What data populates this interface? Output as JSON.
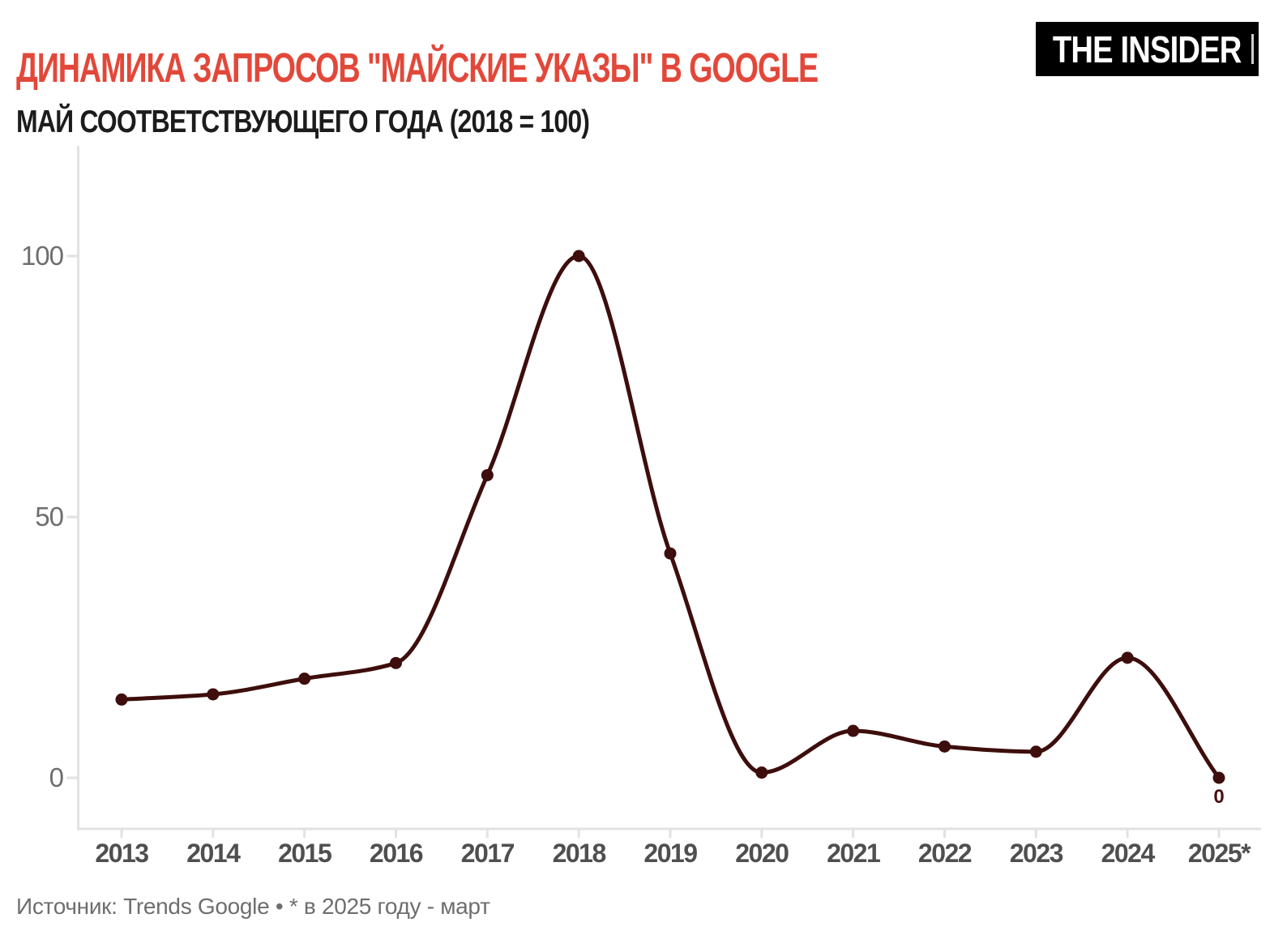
{
  "header": {
    "title": "ДИНАМИКА ЗАПРОСОВ \"МАЙСКИЕ УКАЗЫ\" В GOOGLE",
    "title_color": "#e2483a",
    "subtitle": "МАЙ СООТВЕТСТВУЮЩЕГО ГОДА (2018 = 100)",
    "logo_text": "THE INSIDER"
  },
  "footer": {
    "source": "Источник: Trends Google • * в 2025 году - март"
  },
  "chart_data": {
    "type": "line",
    "title": "ДИНАМИКА ЗАПРОСОВ \"МАЙСКИЕ УКАЗЫ\" В GOOGLE",
    "subtitle": "МАЙ СООТВЕТСТВУЮЩЕГО ГОДА (2018 = 100)",
    "categories": [
      "2013",
      "2014",
      "2015",
      "2016",
      "2017",
      "2018",
      "2019",
      "2020",
      "2021",
      "2022",
      "2023",
      "2024",
      "2025*"
    ],
    "values": [
      15,
      16,
      19,
      22,
      58,
      100,
      43,
      1,
      9,
      6,
      5,
      23,
      0
    ],
    "y_ticks": [
      0,
      50,
      100
    ],
    "ylim": [
      -10,
      121
    ],
    "xlabel": "",
    "ylabel": "",
    "grid": "off",
    "legend": "none",
    "line_color": "#3d0e0c",
    "axis_color": "#e2e2e2",
    "x_tick_label_color": "#4f4f4f",
    "y_tick_label_color": "#6e6e6e",
    "annotation": {
      "label": "0",
      "category": "2025*"
    }
  }
}
